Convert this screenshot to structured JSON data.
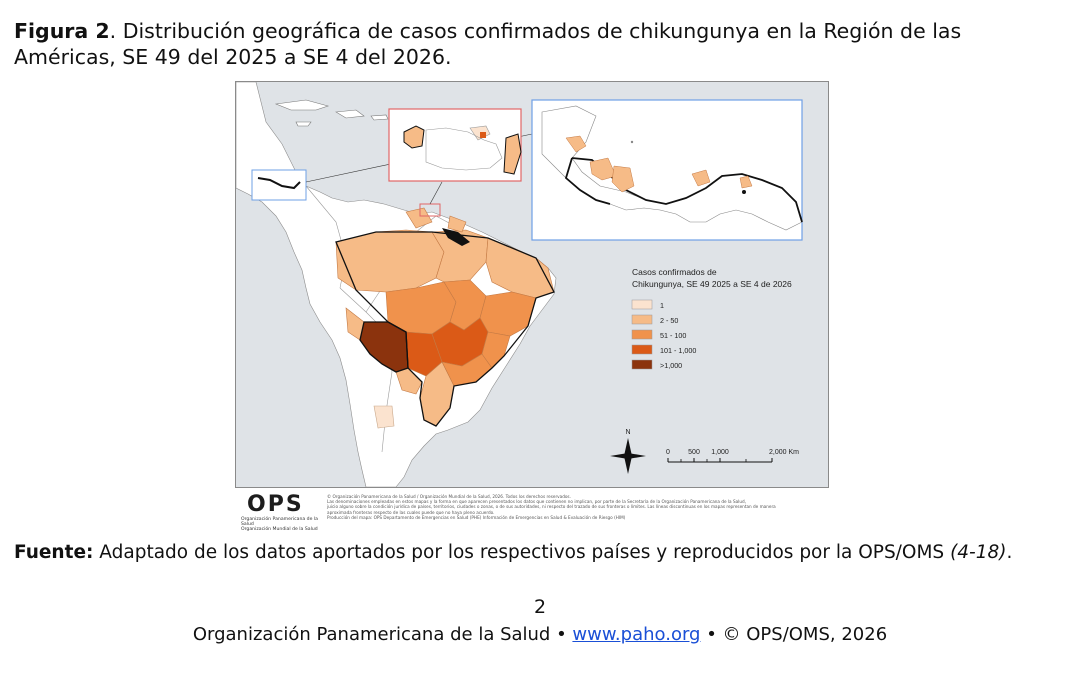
{
  "caption": {
    "figure_label": "Figura 2",
    "text": ". Distribución geográfica de casos confirmados de chikungunya en la Región de las Américas, SE 49 del 2025 a SE 4 del 2026."
  },
  "map": {
    "legend": {
      "title_line1": "Casos confirmados de",
      "title_line2": "Chikungunya, SE 49 2025 a SE 4 de 2026",
      "items": [
        {
          "label": "1",
          "color": "#fbe3cf"
        },
        {
          "label": "2 - 50",
          "color": "#f6bb87"
        },
        {
          "label": "51 - 100",
          "color": "#f0924c"
        },
        {
          "label": "101 - 1,000",
          "color": "#db5a17"
        },
        {
          "label": ">1,000",
          "color": "#8b330d"
        }
      ]
    },
    "north_label": "N",
    "scale": {
      "t0": "0",
      "t1": "500",
      "t2": "1,000",
      "t3": "2,000 Km"
    },
    "colors": {
      "ocean": "#dfe3e7",
      "land": "#ffffff",
      "inset_red": "#e06666",
      "inset_blue": "#6fa0e6"
    }
  },
  "ops": {
    "logo": "OPS",
    "sub1": "Organización Panamericana de la Salud",
    "sub2": "Organización Mundial de la Salud",
    "disclaimer_lines": [
      "© Organización Panamericana de la Salud / Organización Mundial de la Salud, 2026. Todos los derechos reservados.",
      "Las denominaciones empleadas en estos mapas y la forma en que aparecen presentados los datos que contienen no implican, por parte de la Secretaría de la Organización Panamericana de la Salud,",
      "juicio alguno sobre la condición jurídica de países, territorios, ciudades o zonas, o de sus autoridades, ni respecto del trazado de sus fronteras o límites. Las líneas discontinuas en los mapas representan de manera",
      "aproximada fronteras respecto de las cuales puede que no haya pleno acuerdo.",
      "Producción del mapa: OPS Departamento de Emergencias en Salud (PHE) Información de Emergencias en Salud & Evaluación de Riesgo (HIM)"
    ]
  },
  "source": {
    "label": "Fuente:",
    "text": " Adaptado de los datos aportados por los respectivos países y reproducidos por la OPS/OMS ",
    "refs": "(4-18)",
    "end": "."
  },
  "page_number": "2",
  "footer": {
    "org": "Organización Panamericana de la Salud • ",
    "link": "www.paho.org",
    "rest": " • © OPS/OMS, 2026"
  }
}
